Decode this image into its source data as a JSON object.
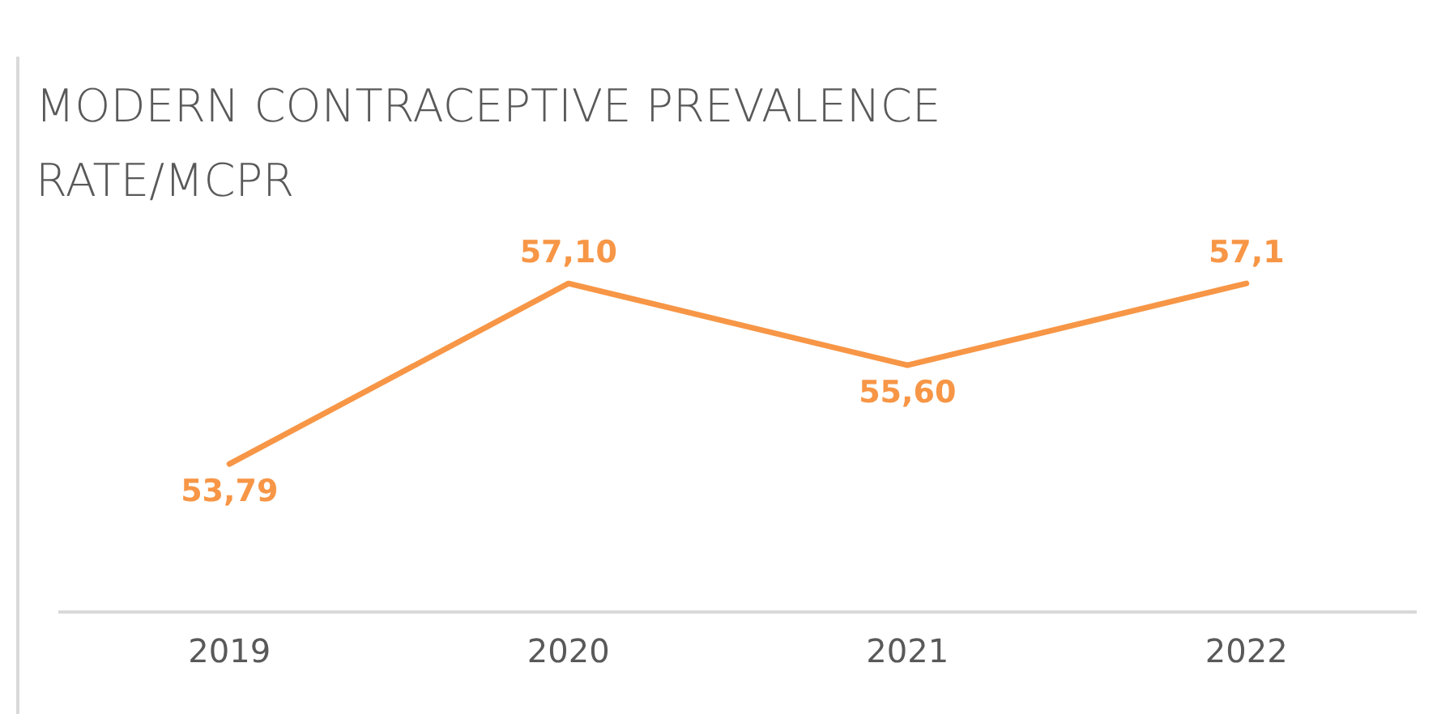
{
  "chart_data": {
    "type": "line",
    "title": "MODERN CONTRACEPTIVE PREVALENCE RATE/MCPR",
    "categories": [
      "2019",
      "2020",
      "2021",
      "2022"
    ],
    "series": [
      {
        "color": "#f79646",
        "values": [
          53.79,
          57.1,
          55.6,
          57.1
        ],
        "value_labels": [
          "53,79",
          "57,10",
          "55,60",
          "57,1"
        ]
      }
    ],
    "legend": false,
    "grid": false
  }
}
